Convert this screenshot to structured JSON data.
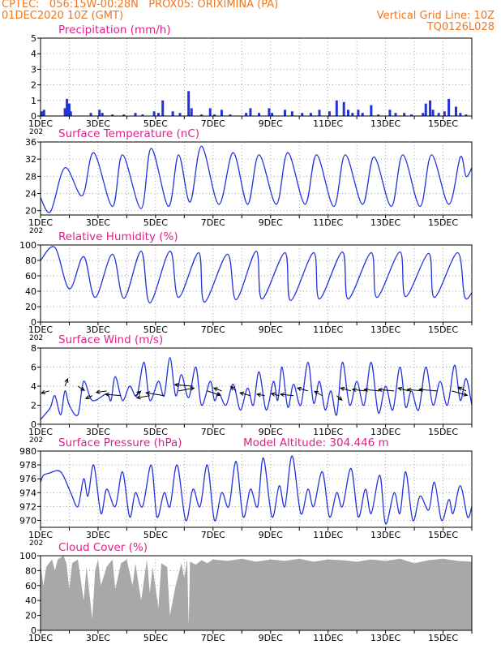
{
  "header": {
    "line1_left": "CPTEC:   056:15W-00:28N   PROX05: ORIXIMINA (PA)",
    "line2_left": "01DEC2020 10Z (GMT)",
    "line2_right": "Vertical Grid Line: 10Z",
    "line3_right": "TQ0126L028"
  },
  "colors": {
    "header": "#ee7722",
    "title": "#e0208a",
    "series": "#2233dd",
    "bars": "#2233dd",
    "cloud": "#a8a8a8",
    "axis": "#000000",
    "grid": "#888888"
  },
  "x_axis": {
    "days": [
      1,
      16
    ],
    "tick_labels": [
      "1DEC",
      "3DEC",
      "5DEC",
      "7DEC",
      "9DEC",
      "11DEC",
      "13DEC",
      "15DEC"
    ],
    "tick_days": [
      1,
      3,
      5,
      7,
      9,
      11,
      13,
      15
    ],
    "under_label": "202"
  },
  "chart_data": [
    {
      "type": "bar",
      "title": "Precipitation (mm/h)",
      "ylim": [
        0,
        5
      ],
      "yticks": [
        0,
        1,
        2,
        3,
        4,
        5
      ],
      "grid": true,
      "x_units": "day of month (DEC 2020)",
      "x": [
        1.05,
        1.12,
        1.85,
        1.92,
        2.0,
        2.05,
        2.75,
        3.05,
        3.15,
        3.5,
        3.9,
        4.3,
        4.55,
        4.95,
        5.1,
        5.25,
        5.6,
        5.85,
        6.15,
        6.25,
        6.6,
        6.9,
        7.05,
        7.3,
        7.6,
        8.15,
        8.3,
        8.6,
        8.95,
        9.05,
        9.5,
        9.75,
        10.1,
        10.4,
        10.7,
        11.05,
        11.3,
        11.55,
        11.7,
        11.85,
        12.05,
        12.2,
        12.5,
        12.75,
        13.15,
        13.35,
        13.65,
        13.9,
        14.3,
        14.4,
        14.55,
        14.65,
        14.85,
        15.05,
        15.2,
        15.45,
        15.6,
        15.8
      ],
      "values": [
        0.3,
        0.4,
        0.5,
        1.1,
        0.8,
        0.3,
        0.2,
        0.4,
        0.2,
        0.1,
        0.1,
        0.2,
        0.1,
        0.3,
        0.2,
        1.0,
        0.3,
        0.2,
        1.6,
        0.5,
        0.1,
        0.5,
        0.1,
        0.4,
        0.1,
        0.2,
        0.5,
        0.2,
        0.5,
        0.2,
        0.4,
        0.3,
        0.2,
        0.2,
        0.4,
        0.3,
        1.0,
        0.9,
        0.4,
        0.2,
        0.4,
        0.2,
        0.7,
        0.1,
        0.4,
        0.2,
        0.2,
        0.1,
        0.2,
        0.8,
        1.0,
        0.4,
        0.2,
        0.3,
        1.1,
        0.6,
        0.2,
        0.1
      ]
    },
    {
      "type": "line",
      "title": "Surface Temperature (nC)",
      "ylim": [
        19,
        36
      ],
      "yticks": [
        20,
        24,
        28,
        32,
        36
      ],
      "grid": true,
      "x_units": "day of month (DEC 2020)",
      "maxima": [
        [
          1.85,
          30
        ],
        [
          2.85,
          33.5
        ],
        [
          3.85,
          33
        ],
        [
          4.85,
          34.5
        ],
        [
          5.8,
          33
        ],
        [
          6.6,
          35
        ],
        [
          7.7,
          33.5
        ],
        [
          8.6,
          33
        ],
        [
          9.6,
          33.5
        ],
        [
          10.6,
          33
        ],
        [
          11.6,
          33
        ],
        [
          12.6,
          32.5
        ],
        [
          13.6,
          33
        ],
        [
          14.6,
          33
        ],
        [
          15.6,
          32.5
        ]
      ],
      "minima": [
        [
          1.0,
          23
        ],
        [
          1.35,
          19.8
        ],
        [
          2.45,
          23.5
        ],
        [
          3.5,
          21
        ],
        [
          4.5,
          20.5
        ],
        [
          5.45,
          21
        ],
        [
          6.2,
          22
        ],
        [
          7.2,
          21.5
        ],
        [
          8.2,
          21.5
        ],
        [
          9.2,
          21.5
        ],
        [
          10.2,
          21.5
        ],
        [
          11.2,
          21
        ],
        [
          12.2,
          21.5
        ],
        [
          13.2,
          21
        ],
        [
          14.2,
          21
        ],
        [
          15.2,
          21.5
        ],
        [
          15.8,
          28
        ],
        [
          16.0,
          30
        ]
      ]
    },
    {
      "type": "line",
      "title": "Relative Humidity (%)",
      "ylim": [
        0,
        100
      ],
      "yticks": [
        0,
        20,
        40,
        60,
        80,
        100
      ],
      "grid": true,
      "x_units": "day of month (DEC 2020)",
      "maxima": [
        [
          1.0,
          80
        ],
        [
          1.5,
          97
        ],
        [
          2.5,
          85
        ],
        [
          3.5,
          88
        ],
        [
          4.5,
          92
        ],
        [
          5.5,
          92
        ],
        [
          6.5,
          90
        ],
        [
          7.5,
          88
        ],
        [
          8.5,
          92
        ],
        [
          9.5,
          90
        ],
        [
          10.5,
          90
        ],
        [
          11.5,
          91
        ],
        [
          12.5,
          90
        ],
        [
          13.5,
          91
        ],
        [
          14.5,
          89
        ],
        [
          15.5,
          90
        ]
      ],
      "minima": [
        [
          2.0,
          43
        ],
        [
          2.9,
          32
        ],
        [
          3.9,
          31
        ],
        [
          4.8,
          25
        ],
        [
          5.8,
          32
        ],
        [
          6.7,
          26
        ],
        [
          7.8,
          29
        ],
        [
          8.7,
          30
        ],
        [
          9.7,
          28
        ],
        [
          10.7,
          30
        ],
        [
          11.7,
          30
        ],
        [
          12.7,
          32
        ],
        [
          13.7,
          33
        ],
        [
          14.7,
          32
        ],
        [
          15.75,
          33
        ],
        [
          16.0,
          38
        ]
      ]
    },
    {
      "type": "line",
      "title": "Surface Wind (m/s)",
      "ylim": [
        0,
        8
      ],
      "yticks": [
        0,
        2,
        4,
        6,
        8
      ],
      "grid": true,
      "x_units": "day of month (DEC 2020)",
      "maxima": [
        [
          1.5,
          3
        ],
        [
          1.85,
          3.5
        ],
        [
          2.5,
          4.5
        ],
        [
          3.3,
          3.2
        ],
        [
          3.6,
          5
        ],
        [
          4.1,
          4
        ],
        [
          4.6,
          6.5
        ],
        [
          5.1,
          4.5
        ],
        [
          5.5,
          7
        ],
        [
          5.9,
          5.2
        ],
        [
          6.4,
          6
        ],
        [
          6.9,
          4.5
        ],
        [
          7.2,
          3.3
        ],
        [
          7.7,
          4.2
        ],
        [
          8.2,
          3.8
        ],
        [
          8.6,
          5.5
        ],
        [
          9.1,
          4.5
        ],
        [
          9.4,
          6
        ],
        [
          9.8,
          4.2
        ],
        [
          10.3,
          6.5
        ],
        [
          10.7,
          4.5
        ],
        [
          11.1,
          3.5
        ],
        [
          11.5,
          6.5
        ],
        [
          12.0,
          4.5
        ],
        [
          12.5,
          6.5
        ],
        [
          13.0,
          4
        ],
        [
          13.5,
          6
        ],
        [
          13.9,
          3.5
        ],
        [
          14.4,
          6
        ],
        [
          14.9,
          4.5
        ],
        [
          15.4,
          6.2
        ],
        [
          15.8,
          4.8
        ]
      ],
      "minima": [
        [
          1.0,
          0.5
        ],
        [
          1.2,
          1.2
        ],
        [
          1.35,
          1.8
        ],
        [
          1.7,
          1
        ],
        [
          2.0,
          2
        ],
        [
          2.3,
          1
        ],
        [
          2.8,
          2.5
        ],
        [
          3.45,
          2.5
        ],
        [
          3.85,
          2.5
        ],
        [
          4.35,
          3
        ],
        [
          4.8,
          2.5
        ],
        [
          5.3,
          3
        ],
        [
          5.7,
          3
        ],
        [
          6.15,
          2.8
        ],
        [
          6.6,
          2
        ],
        [
          7.05,
          2.5
        ],
        [
          7.45,
          2
        ],
        [
          7.95,
          1.5
        ],
        [
          8.4,
          2
        ],
        [
          8.85,
          1.5
        ],
        [
          9.25,
          2.5
        ],
        [
          9.6,
          1.8
        ],
        [
          10.05,
          2
        ],
        [
          10.5,
          2.2
        ],
        [
          10.9,
          1.5
        ],
        [
          11.3,
          1
        ],
        [
          11.75,
          2
        ],
        [
          12.25,
          2
        ],
        [
          12.75,
          1.2
        ],
        [
          13.25,
          1.5
        ],
        [
          13.7,
          1.8
        ],
        [
          14.15,
          1.5
        ],
        [
          14.65,
          2
        ],
        [
          15.15,
          2
        ],
        [
          15.6,
          2.5
        ],
        [
          16.0,
          2
        ]
      ],
      "arrows_x": [
        1.3,
        1.85,
        2.3,
        2.8,
        3.3,
        3.8,
        4.3,
        4.8,
        5.3,
        5.8,
        6.3,
        6.8,
        7.3,
        7.8,
        8.3,
        8.8,
        9.3,
        9.8,
        10.3,
        10.8,
        11.3,
        11.8,
        12.3,
        12.8,
        13.3,
        13.8,
        14.3,
        14.8,
        15.3,
        15.8
      ],
      "arrows_y": [
        3.5,
        4,
        4,
        3,
        3.5,
        3,
        3,
        3,
        3,
        3.5,
        4,
        3.5,
        3.5,
        3.5,
        3,
        3,
        3,
        3,
        3.5,
        3,
        3,
        3.5,
        3.5,
        3.5,
        3.5,
        3.5,
        3.5,
        3.5,
        3.5,
        3.5
      ],
      "arrows_u": [
        -6,
        2,
        5,
        -5,
        -8,
        -12,
        4,
        -10,
        -14,
        12,
        -14,
        10,
        -6,
        -4,
        -8,
        -6,
        -6,
        -10,
        -8,
        -6,
        4,
        -8,
        -10,
        -12,
        -12,
        -8,
        -12,
        -14,
        12,
        -6
      ],
      "arrows_v": [
        -3,
        10,
        -6,
        -4,
        -2,
        2,
        6,
        -3,
        4,
        4,
        2,
        -6,
        4,
        6,
        4,
        2,
        3,
        2,
        4,
        6,
        -6,
        4,
        2,
        2,
        2,
        4,
        2,
        2,
        -6,
        5
      ]
    },
    {
      "type": "line",
      "title": "Surface Pressure (hPa)",
      "annotation": "Model Altitude: 304.446  m",
      "ylim": [
        969,
        980
      ],
      "yticks": [
        970,
        972,
        974,
        976,
        978,
        980
      ],
      "grid": true,
      "x_units": "day of month (DEC 2020)",
      "maxima": [
        [
          1.3,
          976.8
        ],
        [
          1.7,
          977
        ],
        [
          2.5,
          976
        ],
        [
          2.85,
          978
        ],
        [
          3.3,
          974.5
        ],
        [
          3.85,
          977
        ],
        [
          4.3,
          974
        ],
        [
          4.85,
          978
        ],
        [
          5.3,
          974
        ],
        [
          5.75,
          978
        ],
        [
          6.3,
          974.5
        ],
        [
          6.8,
          978
        ],
        [
          7.3,
          974
        ],
        [
          7.8,
          978.5
        ],
        [
          8.3,
          974.5
        ],
        [
          8.75,
          979
        ],
        [
          9.3,
          975
        ],
        [
          9.75,
          979.3
        ],
        [
          10.3,
          974.5
        ],
        [
          10.8,
          977
        ],
        [
          11.3,
          974
        ],
        [
          11.8,
          977.5
        ],
        [
          12.3,
          974.5
        ],
        [
          12.8,
          976.5
        ],
        [
          13.3,
          974
        ],
        [
          13.7,
          977
        ],
        [
          14.2,
          973.5
        ],
        [
          14.7,
          975.5
        ],
        [
          15.2,
          973
        ],
        [
          15.6,
          975
        ]
      ],
      "minima": [
        [
          1.0,
          975.5
        ],
        [
          1.1,
          976.5
        ],
        [
          2.05,
          974
        ],
        [
          2.3,
          972
        ],
        [
          2.65,
          973.5
        ],
        [
          3.1,
          971
        ],
        [
          3.6,
          972
        ],
        [
          4.1,
          970.5
        ],
        [
          4.55,
          972
        ],
        [
          5.05,
          970.5
        ],
        [
          5.5,
          972
        ],
        [
          6.05,
          970
        ],
        [
          6.55,
          972
        ],
        [
          7.05,
          970
        ],
        [
          7.55,
          972
        ],
        [
          8.05,
          970.5
        ],
        [
          8.55,
          972
        ],
        [
          9.05,
          970.5
        ],
        [
          9.5,
          972
        ],
        [
          10.05,
          971
        ],
        [
          10.5,
          972
        ],
        [
          11.05,
          970.5
        ],
        [
          11.5,
          972
        ],
        [
          12.05,
          970.5
        ],
        [
          12.5,
          971
        ],
        [
          13.0,
          969.5
        ],
        [
          13.5,
          971
        ],
        [
          13.95,
          970
        ],
        [
          14.5,
          971.5
        ],
        [
          14.95,
          970
        ],
        [
          15.35,
          971
        ],
        [
          15.85,
          970.5
        ],
        [
          16.0,
          972
        ]
      ]
    },
    {
      "type": "area",
      "title": "Cloud Cover (%)",
      "ylim": [
        0,
        100
      ],
      "yticks": [
        0,
        20,
        40,
        60,
        80,
        100
      ],
      "grid": true,
      "x_units": "day of month (DEC 2020)",
      "x": [
        1.0,
        1.1,
        1.2,
        1.4,
        1.5,
        1.6,
        1.8,
        1.9,
        2.0,
        2.1,
        2.3,
        2.5,
        2.6,
        2.8,
        2.9,
        3.0,
        3.1,
        3.3,
        3.5,
        3.6,
        3.8,
        4.0,
        4.2,
        4.3,
        4.5,
        4.7,
        4.8,
        4.9,
        5.1,
        5.2,
        5.4,
        5.5,
        5.7,
        5.9,
        6.0,
        6.1,
        6.15,
        6.2,
        6.4,
        6.6,
        6.8,
        7.0,
        7.5,
        8.0,
        8.5,
        9.0,
        9.5,
        10.0,
        10.5,
        11.0,
        11.5,
        12.0,
        12.5,
        13.0,
        13.5,
        14.0,
        14.5,
        15.0,
        15.5,
        16.0
      ],
      "values": [
        90,
        60,
        85,
        95,
        80,
        95,
        100,
        90,
        55,
        90,
        95,
        40,
        85,
        15,
        80,
        95,
        60,
        85,
        95,
        55,
        90,
        95,
        60,
        90,
        40,
        95,
        50,
        85,
        30,
        90,
        85,
        20,
        60,
        90,
        70,
        95,
        5,
        92,
        88,
        94,
        90,
        95,
        93,
        96,
        92,
        95,
        93,
        96,
        92,
        95,
        94,
        92,
        95,
        93,
        96,
        90,
        94,
        96,
        93,
        92
      ]
    }
  ]
}
